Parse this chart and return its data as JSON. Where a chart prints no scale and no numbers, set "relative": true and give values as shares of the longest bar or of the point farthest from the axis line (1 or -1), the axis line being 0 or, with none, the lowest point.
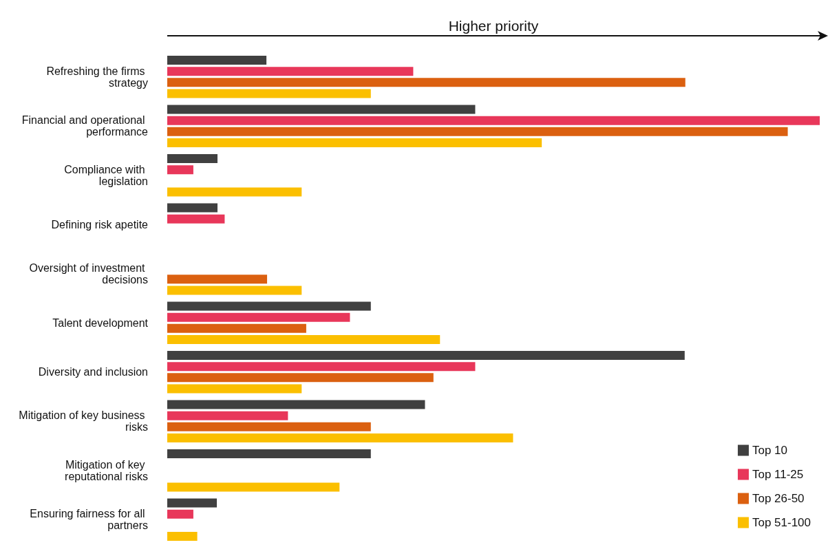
{
  "chart_data": {
    "type": "bar",
    "orientation": "horizontal",
    "relative": true,
    "xlabel": "Higher priority",
    "categories": [
      "Refreshing the firms strategy",
      "Financial and operational performance",
      "Compliance with legislation",
      "Defining risk apetite",
      "Oversight of investment decisions",
      "Talent development",
      "Diversity and inclusion",
      "Mitigation of key business risks",
      "Mitigation of key reputational risks",
      "Ensuring fairness for all partners"
    ],
    "series": [
      {
        "name": "Top 10",
        "color": "#404040",
        "values": [
          0.152,
          0.472,
          0.077,
          0.077,
          null,
          0.312,
          0.793,
          0.395,
          0.312,
          0.076
        ]
      },
      {
        "name": "Top 11-25",
        "color": "#e8375a",
        "values": [
          0.377,
          1,
          0.04,
          0.088,
          null,
          0.28,
          0.472,
          0.185,
          null,
          0.04
        ]
      },
      {
        "name": "Top 26-50",
        "color": "#db6010",
        "values": [
          0.794,
          0.951,
          null,
          null,
          0.153,
          0.213,
          0.408,
          0.312,
          null,
          null
        ]
      },
      {
        "name": "Top 51-100",
        "color": "#fbbf00",
        "values": [
          0.312,
          0.574,
          0.206,
          null,
          0.206,
          0.418,
          0.206,
          0.53,
          0.264,
          0.046
        ]
      }
    ],
    "legend": "bottom right",
    "grid": false
  }
}
